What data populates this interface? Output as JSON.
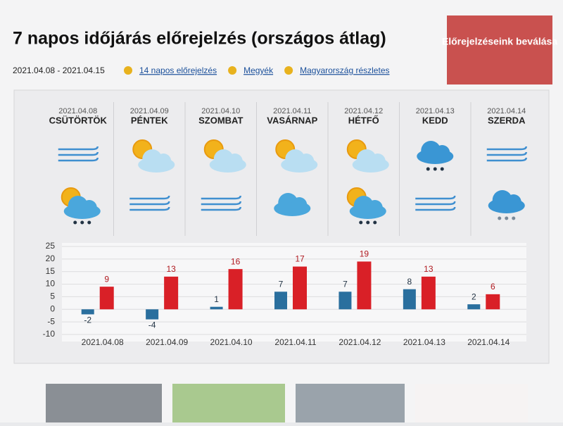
{
  "header": {
    "title": "7 napos időjárás előrejelzés (országos átlag)",
    "button": "Előrejelzéseink beválása",
    "range": "2021.04.08 - 2021.04.15",
    "links": [
      "14 napos előrejelzés",
      "Megyék",
      "Magyarország részletes"
    ]
  },
  "days": [
    {
      "date": "2021.04.08",
      "name": "CSÜTÖRTÖK"
    },
    {
      "date": "2021.04.09",
      "name": "PÉNTEK"
    },
    {
      "date": "2021.04.10",
      "name": "SZOMBAT"
    },
    {
      "date": "2021.04.11",
      "name": "VASÁRNAP"
    },
    {
      "date": "2021.04.12",
      "name": "HÉTFŐ"
    },
    {
      "date": "2021.04.13",
      "name": "KEDD"
    },
    {
      "date": "2021.04.14",
      "name": "SZERDA"
    }
  ],
  "chart_data": {
    "type": "bar",
    "categories": [
      "2021.04.08",
      "2021.04.09",
      "2021.04.10",
      "2021.04.11",
      "2021.04.12",
      "2021.04.13",
      "2021.04.14"
    ],
    "series": [
      {
        "color": "#2a6f9e",
        "values": [
          -2,
          -4,
          1,
          7,
          7,
          8,
          2
        ]
      },
      {
        "color": "#d92027",
        "values": [
          9,
          13,
          16,
          17,
          19,
          13,
          6
        ]
      }
    ],
    "ylim": [
      -10,
      25
    ],
    "yticks": [
      -10,
      -5,
      0,
      5,
      10,
      15,
      20,
      25
    ],
    "grid": true
  }
}
